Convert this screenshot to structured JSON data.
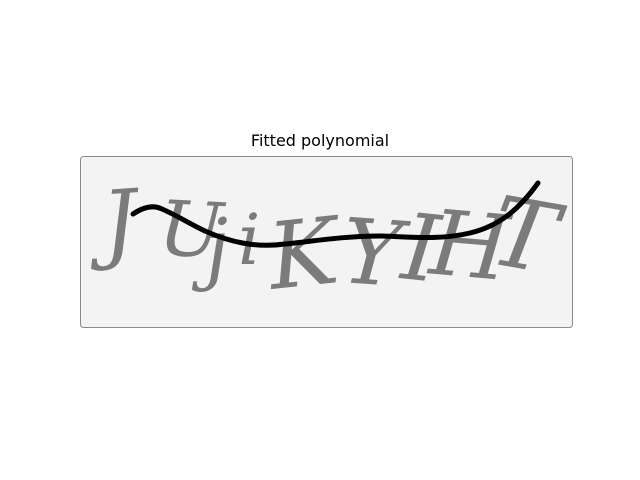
{
  "figure": {
    "title": "Fitted polynomial"
  },
  "captcha": {
    "text": "JUjiKYIHT",
    "background_color": "#f3f3f3",
    "glyph_color": "#6f6f6f",
    "border_color": "#8a8a8a"
  },
  "fit_curve": {
    "color": "#000000",
    "style": "thick jagged polyline"
  }
}
